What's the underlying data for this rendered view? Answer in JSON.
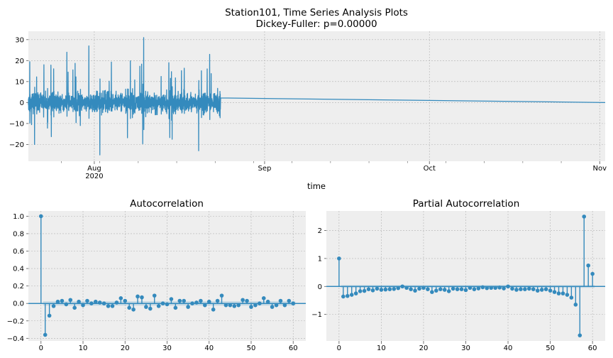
{
  "figure": {
    "title_line1": "Station101, Time Series Analysis Plots",
    "title_line2": "Dickey-Fuller: p=0.00000"
  },
  "chart_data": [
    {
      "type": "line",
      "name": "time-series",
      "title": "",
      "xlabel": "time",
      "ylabel": "",
      "x_range": [
        "2020-07-20",
        "2020-11-02"
      ],
      "x_ticks": [
        {
          "date": "2020-08-01",
          "label": "Aug",
          "sublabel": "2020"
        },
        {
          "date": "2020-09-01",
          "label": "Sep",
          "sublabel": ""
        },
        {
          "date": "2020-10-01",
          "label": "Oct",
          "sublabel": ""
        },
        {
          "date": "2020-11-01",
          "label": "Nov",
          "sublabel": ""
        }
      ],
      "ylim": [
        -28,
        34
      ],
      "yticks": [
        -20,
        -10,
        0,
        10,
        20,
        30
      ],
      "grid": true,
      "color": "#348ABD",
      "active_period": [
        "2020-07-20",
        "2020-08-24"
      ],
      "value_after_active_period": 0,
      "approx_range_in_active_period": [
        -25,
        31
      ],
      "notable_points": [
        {
          "date": "2020-08-10",
          "value": 31
        },
        {
          "date": "2020-07-31",
          "value": 27
        },
        {
          "date": "2020-07-27",
          "value": 24
        },
        {
          "date": "2020-08-02",
          "value": -25
        },
        {
          "date": "2020-08-20",
          "value": -23
        },
        {
          "date": "2020-08-22",
          "value": 23
        }
      ]
    },
    {
      "type": "stem",
      "name": "acf",
      "title": "Autocorrelation",
      "ylim": [
        -0.43,
        1.06
      ],
      "xlim": [
        -3,
        63
      ],
      "yticks": [
        -0.4,
        -0.2,
        0.0,
        0.2,
        0.4,
        0.6,
        0.8,
        1.0
      ],
      "xticks": [
        0,
        10,
        20,
        30,
        40,
        50,
        60
      ],
      "confidence_band": 0.025,
      "color": "#348ABD",
      "lags": [
        0,
        1,
        2,
        3,
        4,
        5,
        6,
        7,
        8,
        9,
        10,
        11,
        12,
        13,
        14,
        15,
        16,
        17,
        18,
        19,
        20,
        21,
        22,
        23,
        24,
        25,
        26,
        27,
        28,
        29,
        30,
        31,
        32,
        33,
        34,
        35,
        36,
        37,
        38,
        39,
        40,
        41,
        42,
        43,
        44,
        45,
        46,
        47,
        48,
        49,
        50,
        51,
        52,
        53,
        54,
        55,
        56,
        57,
        58,
        59,
        60
      ],
      "values": [
        1.0,
        -0.36,
        -0.14,
        -0.03,
        0.02,
        0.03,
        -0.01,
        0.04,
        -0.05,
        0.02,
        -0.02,
        0.03,
        0.0,
        0.02,
        0.01,
        0.0,
        -0.03,
        -0.03,
        0.01,
        0.06,
        0.03,
        -0.05,
        -0.07,
        0.08,
        0.07,
        -0.04,
        -0.06,
        0.09,
        -0.03,
        0.0,
        -0.01,
        0.05,
        -0.05,
        0.03,
        0.03,
        -0.04,
        0.0,
        0.01,
        0.03,
        -0.02,
        0.02,
        -0.07,
        0.03,
        0.09,
        -0.02,
        -0.02,
        -0.03,
        -0.02,
        0.04,
        0.03,
        -0.04,
        -0.02,
        0.0,
        0.06,
        0.02,
        -0.04,
        -0.02,
        0.03,
        -0.02,
        0.03,
        0.0
      ]
    },
    {
      "type": "stem",
      "name": "pacf",
      "title": "Partial Autocorrelation",
      "ylim": [
        -1.95,
        2.7
      ],
      "xlim": [
        -3,
        63
      ],
      "yticks": [
        -1,
        0,
        1,
        2
      ],
      "xticks": [
        0,
        10,
        20,
        30,
        40,
        50,
        60
      ],
      "confidence_band": 0.05,
      "color": "#348ABD",
      "lags": [
        0,
        1,
        2,
        3,
        4,
        5,
        6,
        7,
        8,
        9,
        10,
        11,
        12,
        13,
        14,
        15,
        16,
        17,
        18,
        19,
        20,
        21,
        22,
        23,
        24,
        25,
        26,
        27,
        28,
        29,
        30,
        31,
        32,
        33,
        34,
        35,
        36,
        37,
        38,
        39,
        40,
        41,
        42,
        43,
        44,
        45,
        46,
        47,
        48,
        49,
        50,
        51,
        52,
        53,
        54,
        55,
        56,
        57,
        58,
        59,
        60
      ],
      "values": [
        1.0,
        -0.36,
        -0.34,
        -0.3,
        -0.25,
        -0.17,
        -0.16,
        -0.1,
        -0.14,
        -0.08,
        -0.12,
        -0.11,
        -0.1,
        -0.09,
        -0.06,
        0.0,
        -0.05,
        -0.1,
        -0.15,
        -0.08,
        -0.05,
        -0.1,
        -0.2,
        -0.15,
        -0.1,
        -0.12,
        -0.17,
        -0.08,
        -0.1,
        -0.1,
        -0.13,
        -0.05,
        -0.1,
        -0.07,
        -0.03,
        -0.06,
        -0.05,
        -0.05,
        -0.04,
        -0.07,
        0.0,
        -0.08,
        -0.12,
        -0.1,
        -0.1,
        -0.08,
        -0.1,
        -0.15,
        -0.12,
        -0.1,
        -0.15,
        -0.2,
        -0.25,
        -0.25,
        -0.3,
        -0.4,
        -0.65,
        -1.75,
        2.5,
        0.75,
        0.45
      ]
    }
  ]
}
